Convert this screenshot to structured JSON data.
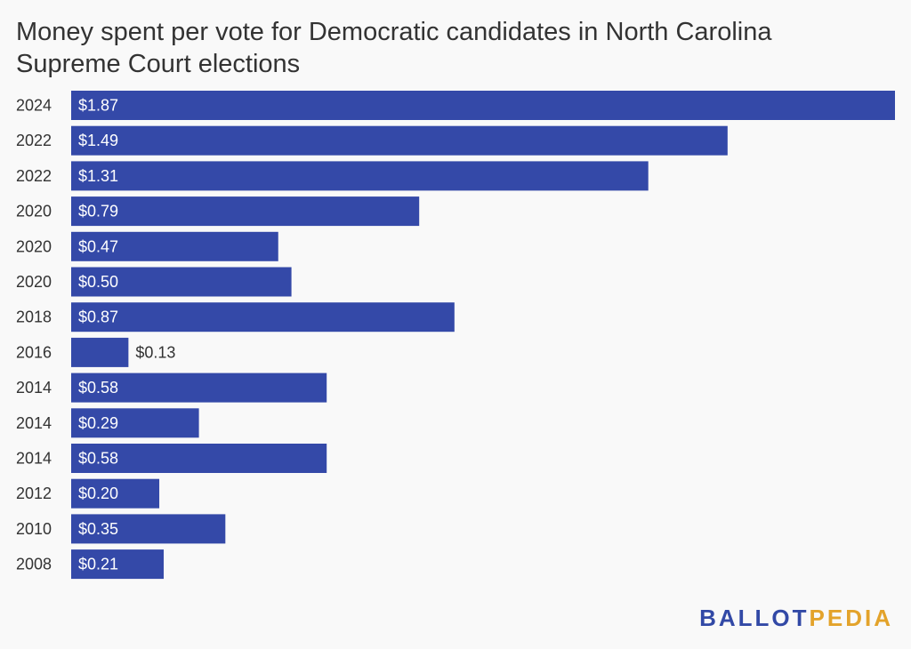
{
  "title": "Money spent per vote for Democratic candidates in North Carolina Supreme Court elections",
  "colors": {
    "bar": "#3449a8",
    "label_inside": "#ffffff",
    "label_outside": "#333333",
    "category_text": "#333333",
    "logo_primary": "#3249a6",
    "logo_accent": "#e3a32b"
  },
  "logo": {
    "part1": "BALLOT",
    "part2": "PEDIA"
  },
  "chart_data": {
    "type": "bar",
    "orientation": "horizontal",
    "categories": [
      "2024",
      "2022",
      "2022",
      "2020",
      "2020",
      "2020",
      "2018",
      "2016",
      "2014",
      "2014",
      "2014",
      "2012",
      "2010",
      "2008"
    ],
    "values": [
      1.87,
      1.49,
      1.31,
      0.79,
      0.47,
      0.5,
      0.87,
      0.13,
      0.58,
      0.29,
      0.58,
      0.2,
      0.35,
      0.21
    ],
    "labels": [
      "$1.87",
      "$1.49",
      "$1.31",
      "$0.79",
      "$0.47",
      "$0.50",
      "$0.87",
      "$0.13",
      "$0.58",
      "$0.29",
      "$0.58",
      "$0.20",
      "$0.35",
      "$0.21"
    ],
    "xlim": [
      0,
      1.87
    ],
    "grid": false,
    "legend": "none"
  }
}
